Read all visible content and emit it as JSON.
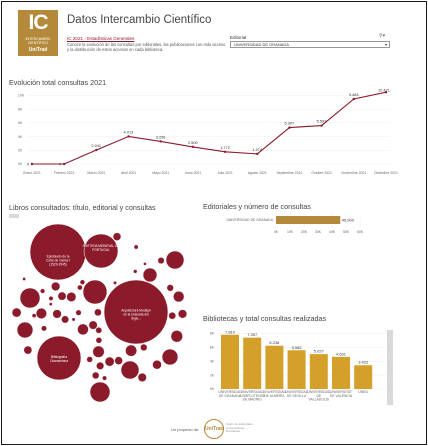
{
  "header": {
    "logo_big": "IC",
    "logo_line1": "INTERCAMBIO",
    "logo_line2": "CIENTÍFICO",
    "logo_line3": "UniTrad",
    "title": "Datos Intercambio Científico",
    "subtitle": "IC 2021 - Estadísticas Generales",
    "description": "Conoce la evolución de las consultas por editoriales, las publicaciones con más acceso y la distribución de estos accesos en cada biblioteca.",
    "filter_label": "Editorial",
    "filter_value": "UNIVERSIDAD DE GRANADA",
    "filter_icon": "filter-icon"
  },
  "sections": {
    "evolution_title": "Evolución total consultas 2021",
    "books_title": "Libros consultados: título, editorial y consultas",
    "publishers_title": "Editoriales y número de consultas",
    "libraries_title": "Bibliotecas y total consultas realizadas"
  },
  "bubbles": {
    "labels": [
      "HISTORIA MEDIEVAL DE PORTUGAL",
      "Epistolario de la Corte de Carlos I (1529-1545)",
      "Arquitectura Mudéjar en la Granada del Siglo...",
      "Bibliografía Ozanamiana"
    ]
  },
  "footer": {
    "text": "Un proyecto de:",
    "logo_text": "UniTrad",
    "logo_sub": "Unión de Editoriales Universitarias Españolas"
  },
  "chart_data": [
    {
      "type": "line",
      "title": "Evolución total consultas 2021",
      "x": [
        "Enero 2021",
        "Febrero 2021",
        "Marzo 2021",
        "Abril 2021",
        "Mayo 2021",
        "Junio 2021",
        "Julio 2021",
        "Agosto 2021",
        "Septiembre 2021",
        "Octubre 2021",
        "Noviembre 2021",
        "Diciembre 2021"
      ],
      "values": [
        0,
        0,
        2041,
        4013,
        3296,
        2500,
        1772,
        1474,
        5307,
        5593,
        9483,
        10471
      ],
      "value_labels": [
        "0",
        "0",
        "2.041",
        "4.013",
        "3.296",
        "2.500",
        "1.772",
        "1.474",
        "5.307",
        "5.593",
        "9.483",
        "10.471"
      ],
      "yticks": [
        0,
        2000,
        4000,
        6000,
        8000,
        10000
      ],
      "ytick_labels": [
        "0K",
        "2K",
        "4K",
        "6K",
        "8K",
        "10K"
      ],
      "ylim": [
        0,
        10500
      ],
      "color": "#8b1a2b"
    },
    {
      "type": "bar",
      "title": "Editoriales y número de consultas",
      "categories": [
        "UNIVERSIDAD DE GRANADA"
      ],
      "values": [
        45900
      ],
      "value_labels": [
        "45.900"
      ],
      "xticks": [
        0,
        10000,
        20000,
        30000,
        40000,
        50000,
        60000
      ],
      "xtick_labels": [
        "0K",
        "10K",
        "20K",
        "30K",
        "40K",
        "50K",
        "60K"
      ],
      "xlim": [
        0,
        60000
      ],
      "color": "#b5893a"
    },
    {
      "type": "bar",
      "title": "Bibliotecas y total consultas realizadas",
      "categories": [
        "UNIVERSIDAD DE GRANADA",
        "UNIVERSIDAD COMPLUTENSE DE MADRID",
        "UNIVERSIDAD DE ALMERÍA",
        "UNIVERSIDAD DE SEVILLA",
        "UNIVERSIDAD DE VALLADOLID",
        "UNIVERSITAT DE VALÈNCIA",
        "UNED"
      ],
      "values": [
        7810,
        7397,
        6238,
        5582,
        5027,
        4631,
        3422
      ],
      "value_labels": [
        "7.810",
        "7.397",
        "6.238",
        "5.582",
        "5.027",
        "4.631",
        "3.422"
      ],
      "yticks": [
        0,
        2000,
        4000,
        6000,
        8000
      ],
      "ytick_labels": [
        "0K",
        "2K",
        "4K",
        "6K",
        "8K"
      ],
      "ylim": [
        0,
        8500
      ],
      "color": "#d4a02a"
    }
  ]
}
